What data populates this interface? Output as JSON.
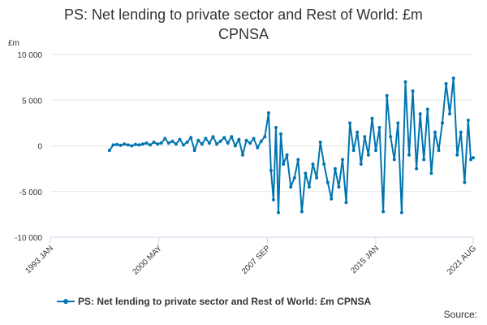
{
  "title_line1": "PS: Net lending to private sector and Rest of World: £m",
  "title_line2": "CPNSA",
  "source_label": "Source:",
  "legend": [
    {
      "label": "PS: Net lending to private sector and Rest of World: £m CPNSA",
      "color": "#0075b0"
    }
  ],
  "chart_data": {
    "type": "line",
    "title": "PS: Net lending to private sector and Rest of World: £m CPNSA",
    "ylabel": "£m",
    "ylim": [
      -10000,
      10000
    ],
    "yticks": [
      10000,
      5000,
      0,
      -5000,
      -10000
    ],
    "ytick_labels": [
      "10 000",
      "5 000",
      "0",
      "-5 000",
      "-10 000"
    ],
    "xlim": [
      "1993 JAN",
      "2021 AUG"
    ],
    "xticks": [
      "1993 JAN",
      "2000 MAY",
      "2007 SEP",
      "2015 JAN",
      "2021 AUG"
    ],
    "grid": true,
    "legend_position": "bottom",
    "series": [
      {
        "name": "PS: Net lending to private sector and Rest of World: £m CPNSA",
        "color": "#0075b0",
        "points": [
          [
            "1997 JAN",
            -500
          ],
          [
            "1997 APR",
            100
          ],
          [
            "1997 JUL",
            150
          ],
          [
            "1997 OCT",
            50
          ],
          [
            "1998 JAN",
            200
          ],
          [
            "1998 APR",
            100
          ],
          [
            "1998 JUL",
            0
          ],
          [
            "1998 OCT",
            150
          ],
          [
            "1999 JAN",
            100
          ],
          [
            "1999 APR",
            200
          ],
          [
            "1999 JUL",
            300
          ],
          [
            "1999 OCT",
            100
          ],
          [
            "2000 JAN",
            400
          ],
          [
            "2000 APR",
            200
          ],
          [
            "2000 JUL",
            300
          ],
          [
            "2000 OCT",
            800
          ],
          [
            "2001 JAN",
            300
          ],
          [
            "2001 APR",
            500
          ],
          [
            "2001 JUL",
            200
          ],
          [
            "2001 OCT",
            700
          ],
          [
            "2002 JAN",
            100
          ],
          [
            "2002 APR",
            400
          ],
          [
            "2002 JUL",
            900
          ],
          [
            "2002 OCT",
            -500
          ],
          [
            "2003 JAN",
            600
          ],
          [
            "2003 APR",
            200
          ],
          [
            "2003 JUL",
            800
          ],
          [
            "2003 OCT",
            300
          ],
          [
            "2004 JAN",
            1000
          ],
          [
            "2004 APR",
            200
          ],
          [
            "2004 JUL",
            500
          ],
          [
            "2004 OCT",
            900
          ],
          [
            "2005 JAN",
            300
          ],
          [
            "2005 APR",
            1000
          ],
          [
            "2005 JUL",
            0
          ],
          [
            "2005 OCT",
            700
          ],
          [
            "2006 JAN",
            -1000
          ],
          [
            "2006 APR",
            600
          ],
          [
            "2006 JUL",
            300
          ],
          [
            "2006 OCT",
            800
          ],
          [
            "2007 JAN",
            -200
          ],
          [
            "2007 APR",
            500
          ],
          [
            "2007 JUL",
            1000
          ],
          [
            "2007 OCT",
            3600
          ],
          [
            "2007 DEC",
            -2700
          ],
          [
            "2008 FEB",
            -5900
          ],
          [
            "2008 APR",
            2000
          ],
          [
            "2008 JUN",
            -7300
          ],
          [
            "2008 AUG",
            1300
          ],
          [
            "2008 OCT",
            -2000
          ],
          [
            "2009 JAN",
            -1000
          ],
          [
            "2009 APR",
            -4500
          ],
          [
            "2009 JUL",
            -3500
          ],
          [
            "2009 OCT",
            -1500
          ],
          [
            "2010 JAN",
            -7200
          ],
          [
            "2010 APR",
            -3000
          ],
          [
            "2010 JUL",
            -4500
          ],
          [
            "2010 OCT",
            -2000
          ],
          [
            "2011 JAN",
            -3500
          ],
          [
            "2011 APR",
            400
          ],
          [
            "2011 JUL",
            -2000
          ],
          [
            "2011 OCT",
            -4000
          ],
          [
            "2012 JAN",
            -5800
          ],
          [
            "2012 APR",
            -2500
          ],
          [
            "2012 JUL",
            -4500
          ],
          [
            "2012 OCT",
            -1500
          ],
          [
            "2013 JAN",
            -6200
          ],
          [
            "2013 APR",
            2500
          ],
          [
            "2013 JUL",
            -500
          ],
          [
            "2013 OCT",
            1500
          ],
          [
            "2014 JAN",
            -2000
          ],
          [
            "2014 APR",
            1000
          ],
          [
            "2014 JUL",
            -1000
          ],
          [
            "2014 OCT",
            3000
          ],
          [
            "2015 JAN",
            -500
          ],
          [
            "2015 APR",
            2000
          ],
          [
            "2015 JUL",
            -7200
          ],
          [
            "2015 OCT",
            5500
          ],
          [
            "2016 JAN",
            1000
          ],
          [
            "2016 APR",
            -1500
          ],
          [
            "2016 JUL",
            2500
          ],
          [
            "2016 OCT",
            -7300
          ],
          [
            "2017 JAN",
            7000
          ],
          [
            "2017 APR",
            -1000
          ],
          [
            "2017 JUL",
            6000
          ],
          [
            "2017 OCT",
            -2500
          ],
          [
            "2018 JAN",
            3500
          ],
          [
            "2018 APR",
            -1500
          ],
          [
            "2018 JUL",
            4000
          ],
          [
            "2018 OCT",
            -3000
          ],
          [
            "2019 JAN",
            1500
          ],
          [
            "2019 APR",
            -500
          ],
          [
            "2019 JUL",
            2500
          ],
          [
            "2019 OCT",
            6800
          ],
          [
            "2020 JAN",
            3500
          ],
          [
            "2020 APR",
            7400
          ],
          [
            "2020 JUL",
            -1000
          ],
          [
            "2020 OCT",
            1500
          ],
          [
            "2021 JAN",
            -4000
          ],
          [
            "2021 APR",
            2800
          ],
          [
            "2021 JUN",
            -1500
          ],
          [
            "2021 AUG",
            -1300
          ]
        ]
      }
    ]
  }
}
